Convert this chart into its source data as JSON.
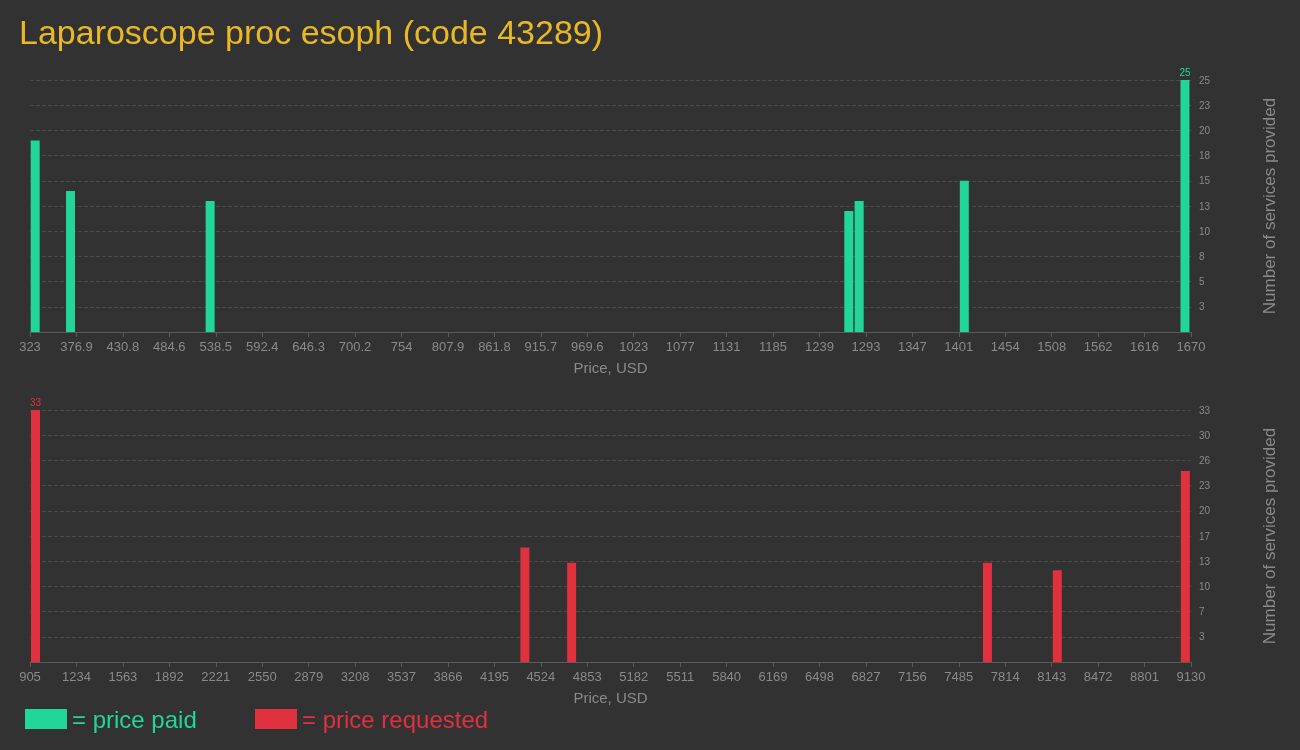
{
  "chart_data": [
    {
      "type": "bar",
      "title": "Laparoscope proc esoph (code 43289)",
      "xlabel": "Price, USD",
      "ylabel": "Number of services provided",
      "x": [
        329,
        370,
        532,
        1273,
        1285,
        1407,
        1663
      ],
      "series": [
        {
          "name": "= price paid",
          "color": "#22d699",
          "values": [
            19,
            14,
            13,
            12,
            13,
            15,
            25
          ],
          "value_labels": [
            null,
            null,
            null,
            null,
            null,
            null,
            "25"
          ]
        }
      ],
      "xlim": [
        323,
        1670
      ],
      "xticks": [
        323,
        {
          "value": 376.88,
          "label": "376.9"
        },
        {
          "value": 430.76,
          "label": "430.8"
        },
        {
          "value": 484.64,
          "label": "484.6"
        },
        {
          "value": 538.52,
          "label": "538.5"
        },
        {
          "value": 592.4,
          "label": "592.4"
        },
        {
          "value": 646.28,
          "label": "646.3"
        },
        {
          "value": 700.16,
          "label": "700.2"
        },
        {
          "value": 754.04,
          "label": "754"
        },
        {
          "value": 807.92,
          "label": "807.9"
        },
        {
          "value": 861.8,
          "label": "861.8"
        },
        {
          "value": 915.68,
          "label": "915.7"
        },
        {
          "value": 969.56,
          "label": "969.6"
        },
        {
          "value": 1023.44,
          "label": "1023"
        },
        {
          "value": 1077.32,
          "label": "1077"
        },
        {
          "value": 1131.2,
          "label": "1131"
        },
        {
          "value": 1185.08,
          "label": "1185"
        },
        {
          "value": 1238.96,
          "label": "1239"
        },
        {
          "value": 1292.84,
          "label": "1293"
        },
        {
          "value": 1346.72,
          "label": "1347"
        },
        {
          "value": 1400.6,
          "label": "1401"
        },
        {
          "value": 1454.48,
          "label": "1454"
        },
        {
          "value": 1508.36,
          "label": "1508"
        },
        {
          "value": 1562.24,
          "label": "1562"
        },
        {
          "value": 1616.12,
          "label": "1616"
        },
        1670
      ],
      "ylim": [
        0,
        25
      ],
      "yticks": [
        {
          "value": 2.5,
          "label": "3"
        },
        5,
        {
          "value": 7.5,
          "label": "8"
        },
        10,
        {
          "value": 12.5,
          "label": "13"
        },
        15,
        {
          "value": 17.5,
          "label": "18"
        },
        20,
        {
          "value": 22.5,
          "label": "23"
        },
        25
      ],
      "grid": "y",
      "legend": "bottom left"
    },
    {
      "type": "bar",
      "xlabel": "Price, USD",
      "ylabel": "Number of services provided",
      "x": [
        944,
        4411,
        4742,
        7688,
        8183,
        9090
      ],
      "series": [
        {
          "name": "= price requested",
          "color": "#e0313f",
          "values": [
            33,
            15,
            13,
            13,
            12,
            25
          ],
          "value_labels": [
            "33",
            null,
            null,
            null,
            null,
            null
          ]
        }
      ],
      "xlim": [
        905,
        9130
      ],
      "xticks": [
        905,
        1234,
        1563,
        1892,
        2221,
        2550,
        2879,
        3208,
        3537,
        3866,
        4195,
        4524,
        4853,
        5182,
        5511,
        5840,
        6169,
        6498,
        6827,
        7156,
        7485,
        7814,
        8143,
        8472,
        8801,
        9130
      ],
      "ylim": [
        0,
        33
      ],
      "yticks": [
        {
          "value": 3.3,
          "label": "3"
        },
        {
          "value": 6.6,
          "label": "7"
        },
        {
          "value": 9.9,
          "label": "10"
        },
        {
          "value": 13.2,
          "label": "13"
        },
        {
          "value": 16.5,
          "label": "17"
        },
        {
          "value": 19.8,
          "label": "20"
        },
        {
          "value": 23.1,
          "label": "23"
        },
        {
          "value": 26.4,
          "label": "26"
        },
        {
          "value": 29.7,
          "label": "30"
        },
        33
      ],
      "grid": "y",
      "legend": "bottom left"
    }
  ]
}
